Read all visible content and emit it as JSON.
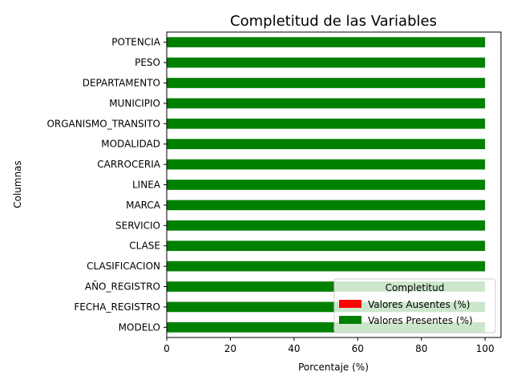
{
  "chart_data": {
    "type": "bar",
    "orientation": "horizontal",
    "stacked": true,
    "title": "Completitud de las Variables",
    "xlabel": "Porcentaje (%)",
    "ylabel": "Columnas",
    "xlim": [
      0,
      105
    ],
    "xticks": [
      0,
      20,
      40,
      60,
      80,
      100
    ],
    "categories": [
      "MODELO",
      "FECHA_REGISTRO",
      "AÑO_REGISTRO",
      "CLASIFICACION",
      "CLASE",
      "SERVICIO",
      "MARCA",
      "LINEA",
      "CARROCERIA",
      "MODALIDAD",
      "ORGANISMO_TRANSITO",
      "MUNICIPIO",
      "DEPARTAMENTO",
      "PESO",
      "POTENCIA"
    ],
    "series": [
      {
        "name": "Valores Ausentes (%)",
        "color": "#ff0000",
        "values": [
          0,
          0,
          0,
          0,
          0,
          0,
          0,
          0,
          0,
          0,
          0,
          0,
          0,
          0,
          0
        ]
      },
      {
        "name": "Valores Presentes (%)",
        "color": "#008000",
        "values": [
          100,
          100,
          100,
          100,
          100,
          100,
          100,
          100,
          100,
          100,
          100,
          100,
          100,
          100,
          100
        ]
      }
    ],
    "legend": {
      "title": "Completitud",
      "position": "lower-right"
    },
    "grid": false
  }
}
